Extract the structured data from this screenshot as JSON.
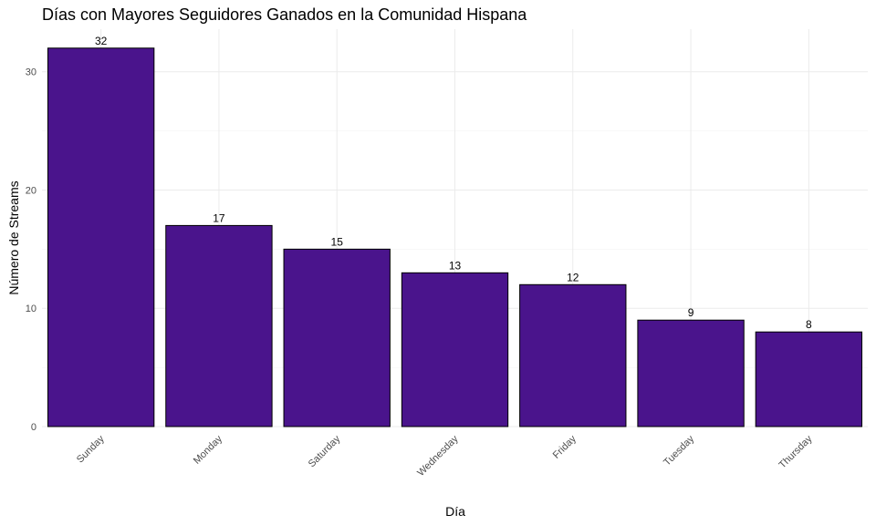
{
  "chart_data": {
    "type": "bar",
    "title": "Días con Mayores Seguidores Ganados en la Comunidad Hispana",
    "xlabel": "Día",
    "ylabel": "Número de Streams",
    "categories": [
      "Sunday",
      "Monday",
      "Saturday",
      "Wednesday",
      "Friday",
      "Tuesday",
      "Thursday"
    ],
    "values": [
      32,
      17,
      15,
      13,
      12,
      9,
      8
    ],
    "ylim": [
      0,
      33.6
    ],
    "yticks": [
      0,
      10,
      20,
      30
    ],
    "grid": true,
    "bar_color": "#4a148c",
    "bar_outline": "#000000"
  }
}
